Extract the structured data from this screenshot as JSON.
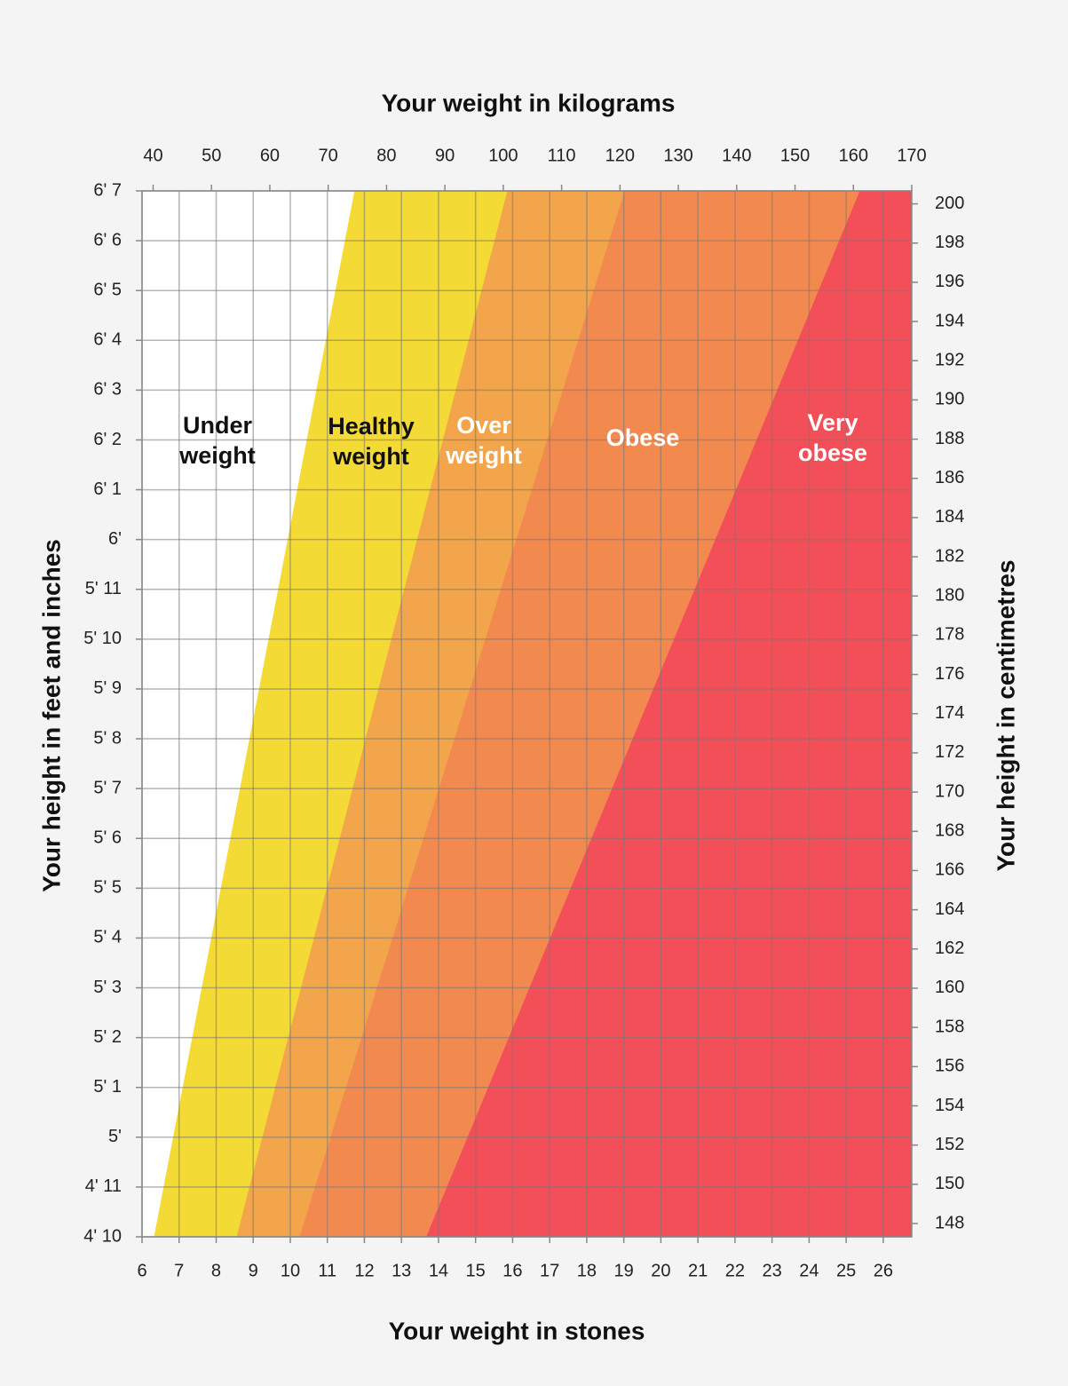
{
  "chart_data": {
    "type": "area",
    "x_title": "Your weight in kilograms",
    "x2_title": "Your weight in stones",
    "y_title": "Your height in feet and inches",
    "y2_title": "Your height in centimetres",
    "xlim": [
      38.1,
      170
    ],
    "xticks": [
      40,
      50,
      60,
      70,
      80,
      90,
      100,
      110,
      120,
      130,
      140,
      150,
      160,
      170
    ],
    "x2lim": [
      6,
      26.77
    ],
    "x2ticks": [
      6,
      7,
      8,
      9,
      10,
      11,
      12,
      13,
      14,
      15,
      16,
      17,
      18,
      19,
      20,
      21,
      22,
      23,
      24,
      25,
      26
    ],
    "ylim": [
      58,
      79
    ],
    "yticks": [
      {
        "value": 58,
        "label": "4' 10"
      },
      {
        "value": 59,
        "label": "4' 11"
      },
      {
        "value": 60,
        "label": "5'"
      },
      {
        "value": 61,
        "label": "5' 1"
      },
      {
        "value": 62,
        "label": "5' 2"
      },
      {
        "value": 63,
        "label": "5' 3"
      },
      {
        "value": 64,
        "label": "5' 4"
      },
      {
        "value": 65,
        "label": "5' 5"
      },
      {
        "value": 66,
        "label": "5' 6"
      },
      {
        "value": 67,
        "label": "5' 7"
      },
      {
        "value": 68,
        "label": "5' 8"
      },
      {
        "value": 69,
        "label": "5' 9"
      },
      {
        "value": 70,
        "label": "5' 10"
      },
      {
        "value": 71,
        "label": "5' 11"
      },
      {
        "value": 72,
        "label": "6'"
      },
      {
        "value": 73,
        "label": "6' 1"
      },
      {
        "value": 74,
        "label": "6' 2"
      },
      {
        "value": 75,
        "label": "6' 3"
      },
      {
        "value": 76,
        "label": "6' 4"
      },
      {
        "value": 77,
        "label": "6' 5"
      },
      {
        "value": 78,
        "label": "6' 6"
      },
      {
        "value": 79,
        "label": "6' 7"
      }
    ],
    "y2lim": [
      147.32,
      200.66
    ],
    "y2ticks": [
      148,
      150,
      152,
      154,
      156,
      158,
      160,
      162,
      164,
      166,
      168,
      170,
      172,
      174,
      176,
      178,
      180,
      182,
      184,
      186,
      188,
      190,
      192,
      194,
      196,
      198,
      200
    ],
    "grid": true,
    "series": [
      {
        "name": [
          "Under",
          "weight"
        ],
        "label_color": "#111111"
      },
      {
        "name": [
          "Healthy",
          "weight"
        ],
        "color": "#f3da35",
        "label_color": "#111111",
        "x": [
          40.15,
          74.5
        ]
      },
      {
        "name": [
          "Over",
          "weight"
        ],
        "color": "#f2a54a",
        "label_color": "#ffffff",
        "x": [
          54.3,
          100.7
        ]
      },
      {
        "name": [
          "Obese"
        ],
        "color": "#f28a50",
        "label_color": "#ffffff",
        "x": [
          65.1,
          120.8
        ]
      },
      {
        "name": [
          "Very",
          "obese"
        ],
        "color": "#f24f58",
        "label_color": "#ffffff",
        "x": [
          86.8,
          161.1
        ]
      }
    ]
  }
}
